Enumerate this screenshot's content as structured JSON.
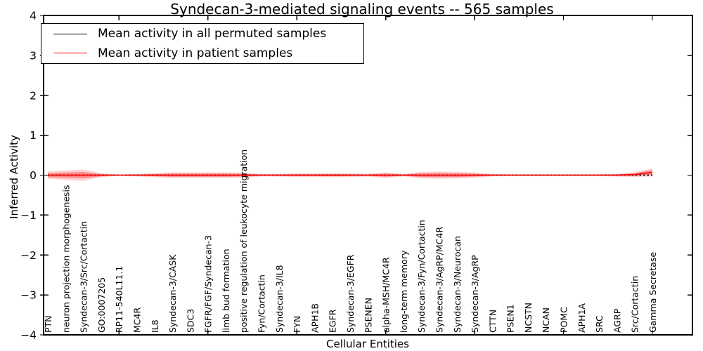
{
  "chart_data": {
    "type": "line",
    "title": "Syndecan-3-mediated signaling events -- 565 samples",
    "xlabel": "Cellular Entities",
    "ylabel": "Inferred Activity",
    "ylim": [
      -4,
      4
    ],
    "yticks": [
      -4,
      -3,
      -2,
      -1,
      0,
      1,
      2,
      3,
      4
    ],
    "ytick_labels": [
      "−4",
      "−3",
      "−2",
      "−1",
      "0",
      "1",
      "2",
      "3",
      "4"
    ],
    "x_major_tick_every": 5,
    "grid": false,
    "legend_position": "upper-left",
    "categories": [
      "PTN",
      "neuron projection morphogenesis",
      "Syndecan-3/Src/Cortactin",
      "GO:0007205",
      "RP11-540L11.1",
      "MC4R",
      "IL8",
      "Syndecan-3/CASK",
      "SDC3",
      "FGFR/FGF/Syndecan-3",
      "limb bud formation",
      "positive regulation of leukocyte migration",
      "Fyn/Cortactin",
      "Syndecan-3/IL8",
      "FYN",
      "APH1B",
      "EGFR",
      "Syndecan-3/EGFR",
      "PSENEN",
      "alpha-MSH/MC4R",
      "long-term memory",
      "Syndecan-3/Fyn/Cortactin",
      "Syndecan-3/AgRP/MC4R",
      "Syndecan-3/Neurocan",
      "Syndecan-3/AgRP",
      "CTTN",
      "PSEN1",
      "NCSTN",
      "NCAN",
      "POMC",
      "APH1A",
      "SRC",
      "AGRP",
      "Src/Cortactin",
      "Gamma Secretase"
    ],
    "series": [
      {
        "name": "Mean activity in all permuted samples",
        "color": "#000000",
        "style": "dashed",
        "values": [
          0,
          0,
          0,
          0,
          0,
          0,
          0,
          0,
          0,
          0,
          0,
          0,
          0,
          0,
          0,
          0,
          0,
          0,
          0,
          0,
          0,
          0,
          0,
          0,
          0,
          0,
          0,
          0,
          0,
          0,
          0,
          0,
          0,
          0,
          0
        ]
      },
      {
        "name": "Mean activity in patient samples",
        "color": "#ff0000",
        "style": "solid",
        "values": [
          0,
          0,
          0,
          0,
          0,
          0,
          0,
          0,
          0,
          0,
          0,
          0,
          0,
          0,
          0,
          0,
          0,
          0,
          0,
          0,
          0,
          0,
          0,
          0,
          0,
          0,
          0,
          0,
          0,
          0,
          0,
          0,
          0,
          0.015,
          0.07
        ]
      }
    ],
    "band": {
      "description": "red uncertainty band around patient mean",
      "color": "#ff0000",
      "outer_alpha": 0.18,
      "inner_alpha": 0.35,
      "inner_fraction": 0.55,
      "half_widths": [
        0.09,
        0.12,
        0.14,
        0.05,
        0.015,
        0.03,
        0.05,
        0.07,
        0.07,
        0.07,
        0.07,
        0.065,
        0.03,
        0.035,
        0.045,
        0.045,
        0.05,
        0.045,
        0.035,
        0.07,
        0.03,
        0.085,
        0.09,
        0.085,
        0.065,
        0.03,
        0.022,
        0.022,
        0.022,
        0.022,
        0.022,
        0.022,
        0.035,
        0.06,
        0.1
      ]
    }
  }
}
